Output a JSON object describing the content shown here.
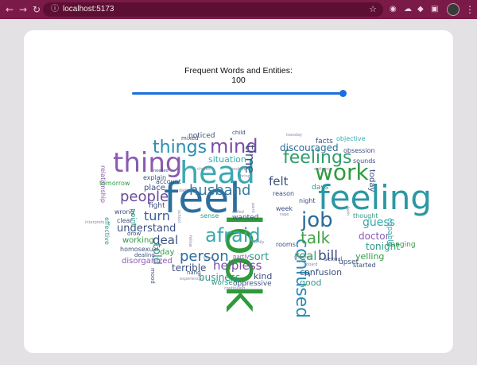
{
  "browser": {
    "url": "localhost:5173",
    "nav_back_icon": "arrow-left",
    "nav_forward_icon": "arrow-right",
    "reload_icon": "reload",
    "accent": "#7a1a48"
  },
  "panel": {
    "title": "Frequent Words and Entities:",
    "value_label": "100",
    "slider_value": 100,
    "slider_fraction": 0.98
  },
  "cloud": {
    "words": [
      {
        "t": "feel",
        "c": "#2a6f9e"
      },
      {
        "t": "look",
        "c": "#2f9a3a"
      },
      {
        "t": "head",
        "c": "#3aa9b3"
      },
      {
        "t": "feeling",
        "c": "#2b98a4"
      },
      {
        "t": "thing",
        "c": "#8a5ab0"
      },
      {
        "t": "things",
        "c": "#2c8fae"
      },
      {
        "t": "mind",
        "c": "#7a4ea8"
      },
      {
        "t": "work",
        "c": "#2f9a40"
      },
      {
        "t": "feelings",
        "c": "#2e9e6a"
      },
      {
        "t": "job",
        "c": "#2a6a9a"
      },
      {
        "t": "afraid",
        "c": "#39a9b0"
      },
      {
        "t": "husband",
        "c": "#3a7aa0"
      },
      {
        "t": "confused",
        "c": "#2a8bb5"
      },
      {
        "t": "talk",
        "c": "#43a146"
      },
      {
        "t": "people",
        "c": "#6a4a9a"
      },
      {
        "t": "person",
        "c": "#2b6c9c"
      },
      {
        "t": "time",
        "c": "#40507d"
      },
      {
        "t": "discouraged",
        "c": "#2b6c9c"
      },
      {
        "t": "guess",
        "c": "#37a8aa"
      },
      {
        "t": "turn",
        "c": "#3b5ea0"
      },
      {
        "t": "understand",
        "c": "#3b4f80"
      },
      {
        "t": "helpless",
        "c": "#7a4ea8"
      },
      {
        "t": "real",
        "c": "#2e9e6a"
      },
      {
        "t": "bill",
        "c": "#40507d"
      },
      {
        "t": "felt",
        "c": "#3b4f80"
      },
      {
        "t": "deal",
        "c": "#3b4f80"
      },
      {
        "t": "told",
        "c": "#2e9a86"
      },
      {
        "t": "sort",
        "c": "#2e9a86"
      },
      {
        "t": "doctor",
        "c": "#8a5ab0"
      },
      {
        "t": "tonight",
        "c": "#2e9a86"
      },
      {
        "t": "yelling",
        "c": "#2f9a40"
      },
      {
        "t": "terrible",
        "c": "#3b4f80"
      },
      {
        "t": "business",
        "c": "#2e9a86"
      },
      {
        "t": "kind",
        "c": "#3b4f80"
      },
      {
        "t": "confusion",
        "c": "#3b4f80"
      },
      {
        "t": "good",
        "c": "#2e9a86"
      },
      {
        "t": "oppressive",
        "c": "#3b4f80"
      },
      {
        "t": "worse",
        "c": "#2e9a86"
      },
      {
        "t": "situation",
        "c": "#3aa9b3"
      },
      {
        "t": "noticed",
        "c": "#3b4f80"
      },
      {
        "t": "facts",
        "c": "#3b4f80"
      },
      {
        "t": "objective",
        "c": "#3aa9b3"
      },
      {
        "t": "obsession",
        "c": "#3b4f80"
      },
      {
        "t": "sounds",
        "c": "#3b4f80"
      },
      {
        "t": "today",
        "c": "#3b4f80"
      },
      {
        "t": "hanging",
        "c": "#2f9a40"
      },
      {
        "t": "capable",
        "c": "#37a8aa"
      },
      {
        "t": "thought",
        "c": "#2e9a86"
      },
      {
        "t": "upset",
        "c": "#3b4f80"
      },
      {
        "t": "started",
        "c": "#3b4f80"
      },
      {
        "t": "days",
        "c": "#2e9a86"
      },
      {
        "t": "reason",
        "c": "#3b4f80"
      },
      {
        "t": "night",
        "c": "#3b4f80"
      },
      {
        "t": "week",
        "c": "#3b4f80"
      },
      {
        "t": "rooms",
        "c": "#3b4f80"
      },
      {
        "t": "wanted",
        "c": "#3b4f80"
      },
      {
        "t": "partly",
        "c": "#8a5ab0"
      },
      {
        "t": "sense",
        "c": "#2e9a86"
      },
      {
        "t": "working",
        "c": "#2f9a40"
      },
      {
        "t": "disorganized",
        "c": "#8a5ab0"
      },
      {
        "t": "day",
        "c": "#2f9a40"
      },
      {
        "t": "place",
        "c": "#3b4f80"
      },
      {
        "t": "fight",
        "c": "#3b4f80"
      },
      {
        "t": "point",
        "c": "#2e9a86"
      },
      {
        "t": "wrong",
        "c": "#3b4f80"
      },
      {
        "t": "clear",
        "c": "#3b4f80"
      },
      {
        "t": "homosexual",
        "c": "#3b4f80"
      },
      {
        "t": "dealing",
        "c": "#3b4f80"
      },
      {
        "t": "explain",
        "c": "#3b4f80"
      },
      {
        "t": "account",
        "c": "#3b4f80"
      },
      {
        "t": "tomorrow",
        "c": "#2f9a40"
      },
      {
        "t": "relationship",
        "c": "#8a5ab0"
      },
      {
        "t": "effective",
        "c": "#2e9a86"
      },
      {
        "t": "mixed",
        "c": "#3b4f80"
      },
      {
        "t": "child",
        "c": "#3b4f80"
      },
      {
        "t": "hang",
        "c": "#3b4f80"
      },
      {
        "t": "mood",
        "c": "#3b4f80"
      },
      {
        "t": "experienced",
        "c": "#8a8aa8"
      },
      {
        "t": "sexual",
        "c": "#3b4f80"
      },
      {
        "t": "continuing",
        "c": "#8a8aa8"
      },
      {
        "t": "drow",
        "c": "#3b4f80"
      },
      {
        "t": "needed",
        "c": "#3b4f80"
      },
      {
        "t": "interprets",
        "c": "#8a8aa8"
      },
      {
        "t": "tuesday",
        "c": "#8a8aa8"
      },
      {
        "t": "ordinary",
        "c": "#8a8aa8"
      },
      {
        "t": "faith",
        "c": "#8a8aa8"
      },
      {
        "t": "chores",
        "c": "#8a8aa8"
      },
      {
        "t": "positive",
        "c": "#8a8aa8"
      },
      {
        "t": "called",
        "c": "#8a8aa8"
      },
      {
        "t": "school",
        "c": "#8a8aa8"
      },
      {
        "t": "fellow",
        "c": "#8a8aa8"
      },
      {
        "t": "bring",
        "c": "#8a8aa8"
      },
      {
        "t": "paint",
        "c": "#8a8aa8"
      },
      {
        "t": "rage",
        "c": "#8a8aa8"
      },
      {
        "t": "instance",
        "c": "#8a8aa8"
      },
      {
        "t": "board",
        "c": "#8a8aa8"
      },
      {
        "t": "family",
        "c": "#8a8aa8"
      },
      {
        "t": "knew",
        "c": "#8a8aa8"
      },
      {
        "t": "dark",
        "c": "#8a8aa8"
      }
    ]
  }
}
